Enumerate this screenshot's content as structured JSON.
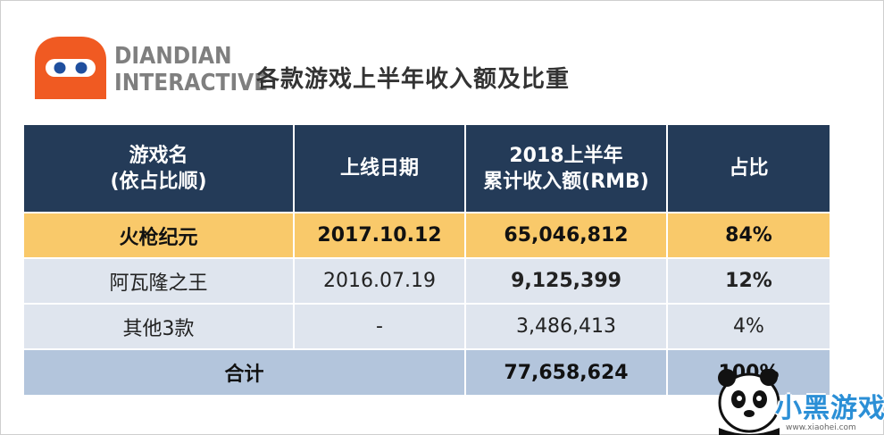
{
  "logo": {
    "line1": "DIANDIAN",
    "line2": "INTERACTIVE"
  },
  "title": "各款游戏上半年收入额及比重",
  "table": {
    "headers": [
      "游戏名\n(依占比顺)",
      "上线日期",
      "2018上半年\n累计收入额(RMB)",
      "占比"
    ],
    "rows": [
      [
        "火枪纪元",
        "2017.10.12",
        "65,046,812",
        "84%"
      ],
      [
        "阿瓦隆之王",
        "2016.07.19",
        "9,125,399",
        "12%"
      ],
      [
        "其他3款",
        "-",
        "3,486,413",
        "4%"
      ]
    ],
    "total": {
      "label": "合计",
      "revenue": "77,658,624",
      "share": "100%"
    }
  },
  "watermark": {
    "name": "小黑游戏",
    "url": "www.xiaohei.com"
  },
  "colors": {
    "header": "#243b58",
    "highlight": "#f9c96a",
    "row": "#dfe5ee",
    "total": "#b3c5dc",
    "logo": "#f05a22"
  }
}
